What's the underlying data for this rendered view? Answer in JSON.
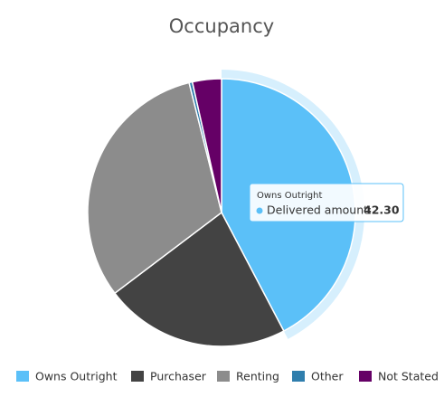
{
  "chart_data": {
    "type": "pie",
    "title": "Occupancy",
    "categories": [
      "Owns Outright",
      "Purchaser",
      "Renting",
      "Other",
      "Not Stated"
    ],
    "values": [
      42.3,
      22.4,
      31.4,
      0.4,
      3.5
    ],
    "value_labels": [
      "42.30",
      null,
      null,
      null,
      null
    ],
    "colors": [
      "#5bc0f8",
      "#434343",
      "#8c8c8c",
      "#2f7ead",
      "#650066"
    ],
    "legend": "bottom",
    "tooltip": {
      "label": "Delivered amount:"
    }
  }
}
